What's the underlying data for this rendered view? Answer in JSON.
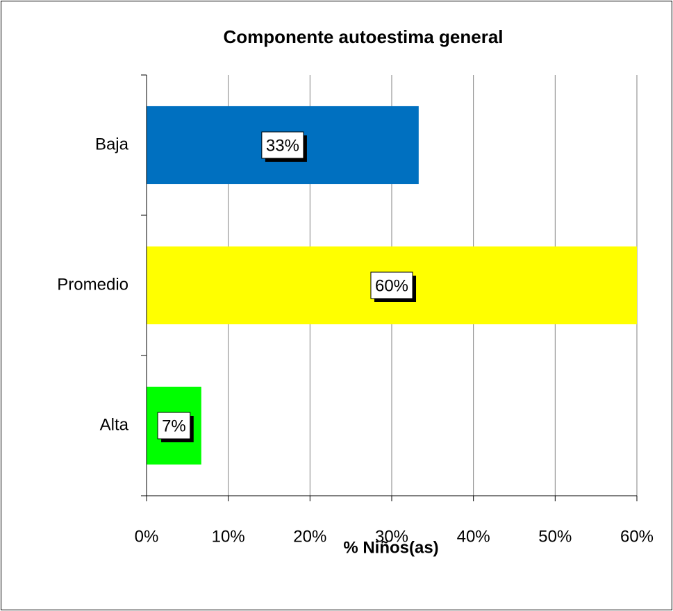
{
  "chart_data": {
    "type": "bar",
    "orientation": "horizontal",
    "title": "Componente autoestima general",
    "x_label": "% Niños(as)",
    "categories": [
      "Baja",
      "Promedio",
      "Alta"
    ],
    "values": [
      33.3,
      60,
      6.7
    ],
    "value_labels": [
      "33%",
      "60%",
      "7%"
    ],
    "colors": [
      "#0070c0",
      "#ffff00",
      "#00ff00"
    ],
    "xlim": [
      0,
      60
    ],
    "xticks": [
      {
        "value": 0,
        "label": "0%"
      },
      {
        "value": 10,
        "label": "10%"
      },
      {
        "value": 20,
        "label": "20%"
      },
      {
        "value": 30,
        "label": "30%"
      },
      {
        "value": 40,
        "label": "40%"
      },
      {
        "value": 50,
        "label": "50%"
      },
      {
        "value": 60,
        "label": "60%"
      }
    ],
    "grid": true
  }
}
